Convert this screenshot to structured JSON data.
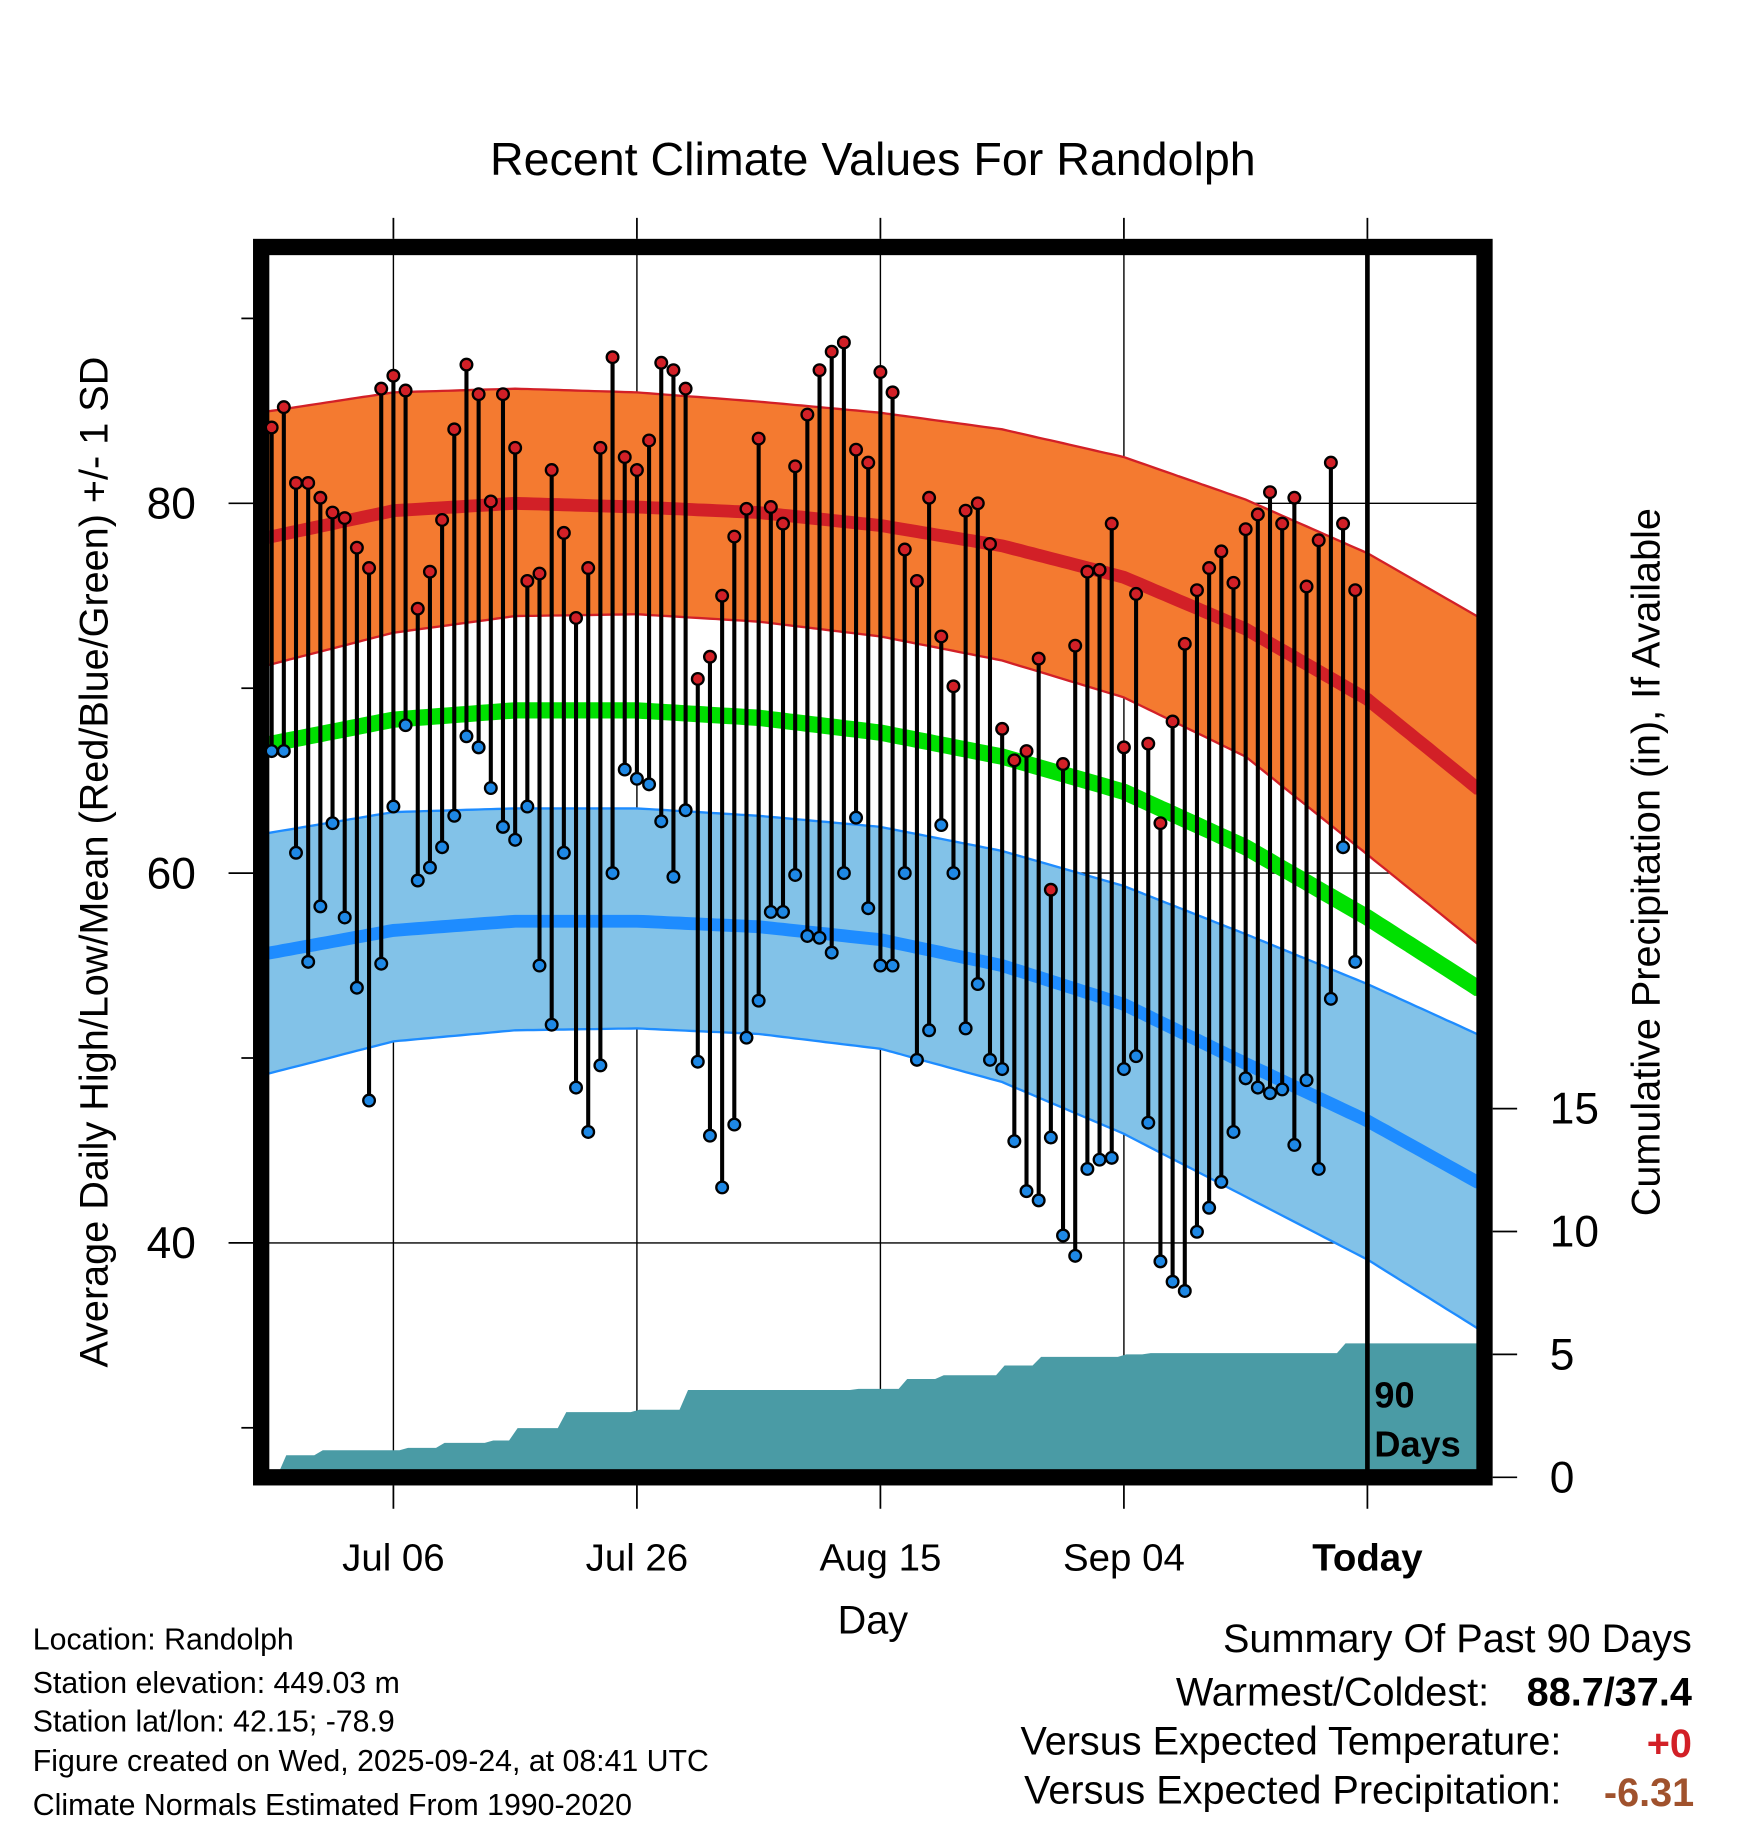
{
  "chart_data": {
    "type": "line",
    "title": "Recent Climate Values For Randolph",
    "xlabel": "Day",
    "ylabel": "Average Daily High/Low/Mean (Red/Blue/Green) +/- 1 SD",
    "y2label": "Cumulative Precipitation (in), If Available",
    "ylim": [
      27,
      92
    ],
    "y2lim": [
      0,
      30
    ],
    "x_start_date": "Jun 26",
    "x_tick_labels": [
      "Jul 06",
      "Jul 26",
      "Aug 15",
      "Sep 04",
      "Today"
    ],
    "x_tick_days": [
      10,
      30,
      50,
      70,
      90
    ],
    "y_ticks": [
      40,
      60,
      80
    ],
    "y_minor_ticks": [
      30,
      50,
      70,
      90
    ],
    "y2_ticks": [
      0,
      5,
      10,
      15
    ],
    "today_label": [
      "90",
      "Days"
    ],
    "grid": true,
    "highs": [
      84.1,
      85.2,
      81.1,
      81.1,
      80.3,
      79.5,
      79.2,
      77.6,
      76.5,
      86.2,
      86.9,
      86.1,
      74.3,
      76.3,
      79.1,
      84.0,
      87.5,
      85.9,
      80.1,
      85.9,
      83.0,
      75.8,
      76.2,
      81.8,
      78.4,
      73.8,
      76.5,
      83.0,
      87.9,
      82.5,
      81.8,
      83.4,
      87.6,
      87.2,
      86.2,
      70.5,
      71.7,
      75.0,
      78.2,
      79.7,
      83.5,
      79.8,
      78.9,
      82.0,
      84.8,
      87.2,
      88.2,
      88.7,
      82.9,
      82.2,
      87.1,
      86.0,
      77.5,
      75.8,
      80.3,
      72.8,
      70.1,
      79.6,
      80.0,
      77.8,
      67.8,
      66.1,
      66.6,
      71.6,
      59.1,
      65.9,
      72.3,
      76.3,
      76.4,
      78.9,
      66.8,
      75.1,
      67.0,
      62.7,
      68.2,
      72.4,
      75.3,
      76.5,
      77.4,
      75.7,
      78.6,
      79.4,
      80.6,
      78.9,
      80.3,
      75.5,
      78.0,
      82.2,
      78.9,
      75.3
    ],
    "lows": [
      66.6,
      66.6,
      61.1,
      55.2,
      58.2,
      62.7,
      57.6,
      53.8,
      47.7,
      55.1,
      63.6,
      68.0,
      59.6,
      60.3,
      61.4,
      63.1,
      67.4,
      66.8,
      64.6,
      62.5,
      61.8,
      63.6,
      55.0,
      51.8,
      61.1,
      48.4,
      46.0,
      49.6,
      60.0,
      65.6,
      65.1,
      64.8,
      62.8,
      59.8,
      63.4,
      49.8,
      45.8,
      43.0,
      46.4,
      51.1,
      53.1,
      57.9,
      57.9,
      59.9,
      56.6,
      56.5,
      55.7,
      60.0,
      63.0,
      58.1,
      55.0,
      55.0,
      60.0,
      49.9,
      51.5,
      62.6,
      60.0,
      51.6,
      54.0,
      49.9,
      49.4,
      45.5,
      42.8,
      42.3,
      45.7,
      40.4,
      39.3,
      44.0,
      44.5,
      44.6,
      49.4,
      50.1,
      46.5,
      39.0,
      37.9,
      37.4,
      40.6,
      41.9,
      43.3,
      46.0,
      48.9,
      48.4,
      48.1,
      48.3,
      45.3,
      48.8,
      44.0,
      53.2,
      61.4,
      55.2
    ],
    "normals": {
      "days": [
        0,
        10,
        20,
        30,
        40,
        50,
        60,
        70,
        80,
        90,
        99
      ],
      "high_mean": [
        78.2,
        79.6,
        80.0,
        79.8,
        79.5,
        78.8,
        77.7,
        76.0,
        73.2,
        69.4,
        64.6
      ],
      "high_upper": [
        85.0,
        86.0,
        86.2,
        86.0,
        85.5,
        84.9,
        84.0,
        82.5,
        80.2,
        77.3,
        73.9
      ],
      "high_lower": [
        71.3,
        73.0,
        73.9,
        74.0,
        73.6,
        72.8,
        71.5,
        69.5,
        66.3,
        61.0,
        56.2
      ],
      "mean": [
        67.0,
        68.3,
        68.8,
        68.8,
        68.4,
        67.6,
        66.3,
        64.4,
        61.4,
        57.6,
        53.8
      ],
      "low_mean": [
        55.7,
        56.9,
        57.4,
        57.4,
        57.1,
        56.4,
        55.0,
        52.9,
        49.7,
        46.6,
        43.3
      ],
      "low_upper": [
        62.2,
        63.3,
        63.5,
        63.5,
        63.1,
        62.5,
        61.2,
        59.3,
        56.7,
        54.0,
        51.3
      ],
      "low_lower": [
        49.2,
        50.9,
        51.5,
        51.6,
        51.3,
        50.5,
        48.7,
        45.9,
        42.5,
        39.1,
        35.4
      ]
    },
    "precip_steps": [
      [
        0,
        0.1
      ],
      [
        1,
        0.9
      ],
      [
        4,
        1.1
      ],
      [
        11,
        1.2
      ],
      [
        14,
        1.4
      ],
      [
        18,
        1.5
      ],
      [
        20,
        2.0
      ],
      [
        24,
        2.65
      ],
      [
        30,
        2.75
      ],
      [
        34,
        3.55
      ],
      [
        48,
        3.6
      ],
      [
        52,
        4.0
      ],
      [
        55,
        4.15
      ],
      [
        60,
        4.55
      ],
      [
        63,
        4.9
      ],
      [
        70,
        5.0
      ],
      [
        72,
        5.05
      ],
      [
        88,
        5.45
      ]
    ],
    "colors": {
      "high_band": "#F47A30",
      "high_line": "#D22027",
      "mean_line": "#00E000",
      "low_band": "#82C2E8",
      "low_line": "#1E8CFF",
      "precip": "#4A9BA5",
      "high_dot": "#D22027",
      "low_dot": "#1E88E5"
    }
  },
  "footer": {
    "location": "Location: Randolph",
    "elevation": "Station elevation: 449.03 m",
    "latlon": "Station lat/lon: 42.15; -78.9",
    "created": "Figure created on Wed, 2025-09-24, at 08:41 UTC",
    "normals": "Climate Normals Estimated From 1990-2020"
  },
  "summary": {
    "title": "Summary Of Past 90 Days",
    "warm_cold_label": "Warmest/Coldest:",
    "warm_cold_value": "88.7/37.4",
    "temp_label": "Versus Expected Temperature:",
    "temp_value": "+0",
    "temp_color": "#D22027",
    "precip_label": "Versus Expected Precipitation:",
    "precip_value": "-6.31",
    "precip_color": "#A0522D"
  }
}
